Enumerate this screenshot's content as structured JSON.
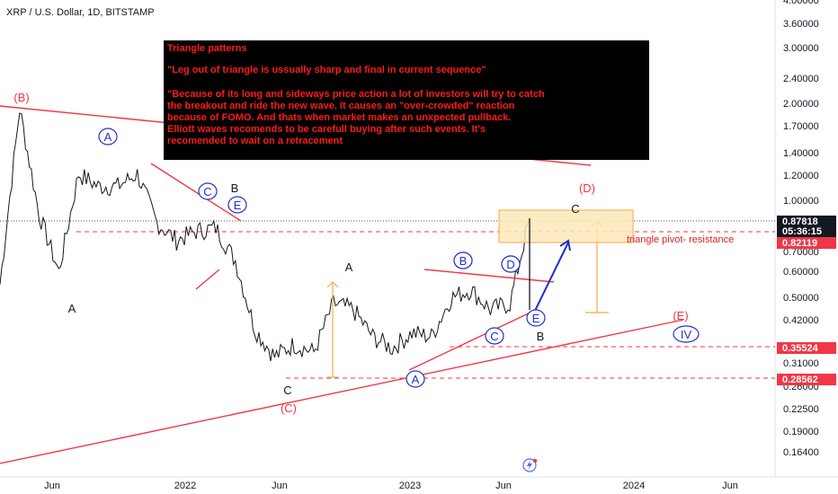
{
  "header": {
    "title": "XRP / U.S. Dollar, 1D, BITSTAMP"
  },
  "colors": {
    "red": "#f23645",
    "blue": "#2231c9",
    "orange": "#f7a64a",
    "price_tag_red": "#f23645",
    "price_tag_black": "#131722",
    "note_bg": "#000000"
  },
  "chart_data": {
    "type": "line",
    "symbol": "XRP / U.S. Dollar",
    "interval": "1D",
    "exchange": "BITSTAMP",
    "y_scale": "log",
    "ylim": [
      0.15,
      4.0
    ],
    "xlim": [
      "2021-04",
      "2024-07"
    ],
    "x_ticks": [
      "Jun",
      "2022",
      "Jun",
      "2023",
      "Jun",
      "2024",
      "Jun"
    ],
    "y_ticks": [
      "4.00000",
      "3.60000",
      "3.00000",
      "2.40000",
      "2.00000",
      "1.70000",
      "1.40000",
      "1.20000",
      "1.00000",
      "0.70000",
      "0.60000",
      "0.50000",
      "0.42000",
      "0.31000",
      "0.26000",
      "0.22500",
      "0.19000",
      "0.16400"
    ],
    "price_labels": [
      {
        "value": "0.87818",
        "sub": "05:36:15",
        "style": "black"
      },
      {
        "value": "0.82119",
        "style": "red"
      },
      {
        "value": "0.35524",
        "style": "red"
      },
      {
        "value": "0.28562",
        "style": "red"
      }
    ],
    "series": [
      {
        "x": [
          "2021-04",
          "2021-05",
          "2021-06",
          "2021-07",
          "2021-08",
          "2021-09",
          "2021-10",
          "2021-11",
          "2021-12",
          "2022-01",
          "2022-02",
          "2022-03",
          "2022-04",
          "2022-05",
          "2022-06",
          "2022-07",
          "2022-08",
          "2022-09",
          "2022-10",
          "2022-11",
          "2022-12",
          "2023-01",
          "2023-02",
          "2023-03",
          "2023-04",
          "2023-05",
          "2023-06",
          "2023-07"
        ],
        "values": [
          0.55,
          1.9,
          0.9,
          0.6,
          1.2,
          1.1,
          1.1,
          1.2,
          0.85,
          0.75,
          0.8,
          0.82,
          0.65,
          0.4,
          0.33,
          0.36,
          0.34,
          0.48,
          0.46,
          0.38,
          0.35,
          0.39,
          0.38,
          0.5,
          0.53,
          0.46,
          0.48,
          0.88
        ]
      }
    ],
    "wave_labels": [
      {
        "text": "(B)",
        "color": "red"
      },
      {
        "text": "A",
        "color": "blue",
        "circled": true
      },
      {
        "text": "A",
        "color": "black"
      },
      {
        "text": "C",
        "color": "blue",
        "circled": true
      },
      {
        "text": "B",
        "color": "black"
      },
      {
        "text": "E",
        "color": "blue",
        "circled": true
      },
      {
        "text": "B",
        "color": "blue",
        "circled": true
      },
      {
        "text": "D",
        "color": "blue",
        "circled": true
      },
      {
        "text": "C",
        "color": "black"
      },
      {
        "text": "(C)",
        "color": "red"
      },
      {
        "text": "A",
        "color": "black"
      },
      {
        "text": "A",
        "color": "blue",
        "circled": true
      },
      {
        "text": "B",
        "color": "blue",
        "circled": true
      },
      {
        "text": "D",
        "color": "blue",
        "circled": true
      },
      {
        "text": "C",
        "color": "blue",
        "circled": true
      },
      {
        "text": "E",
        "color": "blue",
        "circled": true
      },
      {
        "text": "B",
        "color": "black"
      },
      {
        "text": "(D)",
        "color": "red"
      },
      {
        "text": "C",
        "color": "black"
      },
      {
        "text": "(E)",
        "color": "red"
      },
      {
        "text": "IV",
        "color": "blue",
        "circled": true
      }
    ],
    "annotations": {
      "pivot": "triangle pivot- resistance",
      "note_title": "Triangle patterns",
      "note_line1": "\"Leg out of triangle is ussually sharp and final in current sequence\"",
      "note_body": [
        "\"Because of its long and sideways price action a lot of investors will try to catch",
        "the breakout and ride the new wave. It causes an \"over-crowded\" reaction",
        "because of FOMO. And thats when market makes an unxpected pullback.",
        "Elliott waves recomends to be carefull buying after such events. It's",
        "recomended to wait on a retracement"
      ]
    }
  }
}
